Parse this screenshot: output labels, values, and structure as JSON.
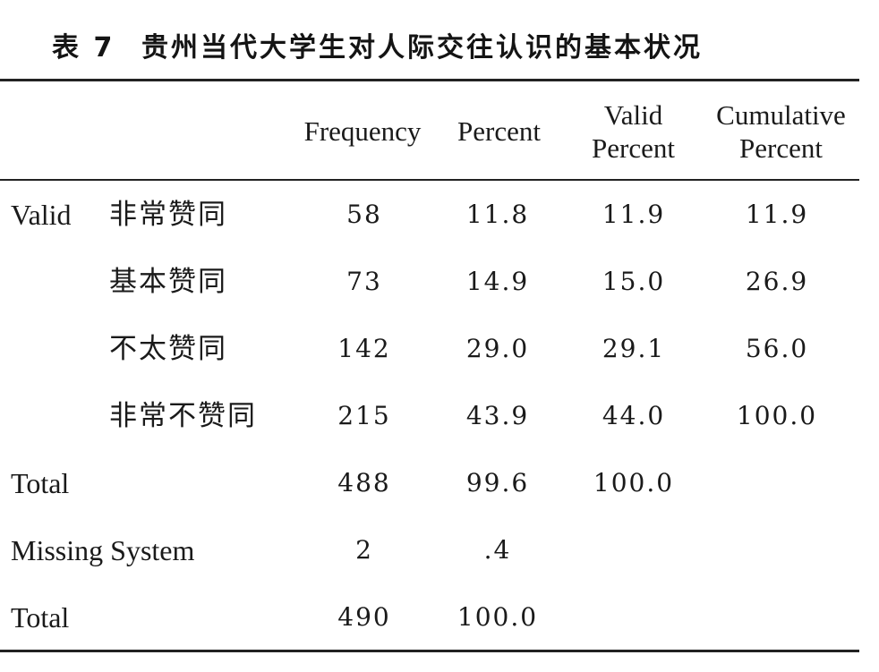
{
  "caption": {
    "label": "表 7",
    "title": "贵州当代大学生对人际交往认识的基本状况"
  },
  "table": {
    "headers": {
      "frequency": "Frequency",
      "percent": "Percent",
      "valid_percent_line1": "Valid",
      "valid_percent_line2": "Percent",
      "cumulative_percent_line1": "Cumulative",
      "cumulative_percent_line2": "Percent"
    },
    "group_label_valid": "Valid",
    "rows": [
      {
        "category": "非常赞同",
        "frequency": "58",
        "percent": "11.8",
        "valid_percent": "11.9",
        "cumulative_percent": "11.9"
      },
      {
        "category": "基本赞同",
        "frequency": "73",
        "percent": "14.9",
        "valid_percent": "15.0",
        "cumulative_percent": "26.9"
      },
      {
        "category": "不太赞同",
        "frequency": "142",
        "percent": "29.0",
        "valid_percent": "29.1",
        "cumulative_percent": "56.0"
      },
      {
        "category": "非常不赞同",
        "frequency": "215",
        "percent": "43.9",
        "valid_percent": "44.0",
        "cumulative_percent": "100.0"
      }
    ],
    "valid_total": {
      "label": "Total",
      "frequency": "488",
      "percent": "99.6",
      "valid_percent": "100.0"
    },
    "missing": {
      "label": "Missing System",
      "frequency": "2",
      "percent": ".4"
    },
    "grand_total": {
      "label": "Total",
      "frequency": "490",
      "percent": "100.0"
    }
  }
}
